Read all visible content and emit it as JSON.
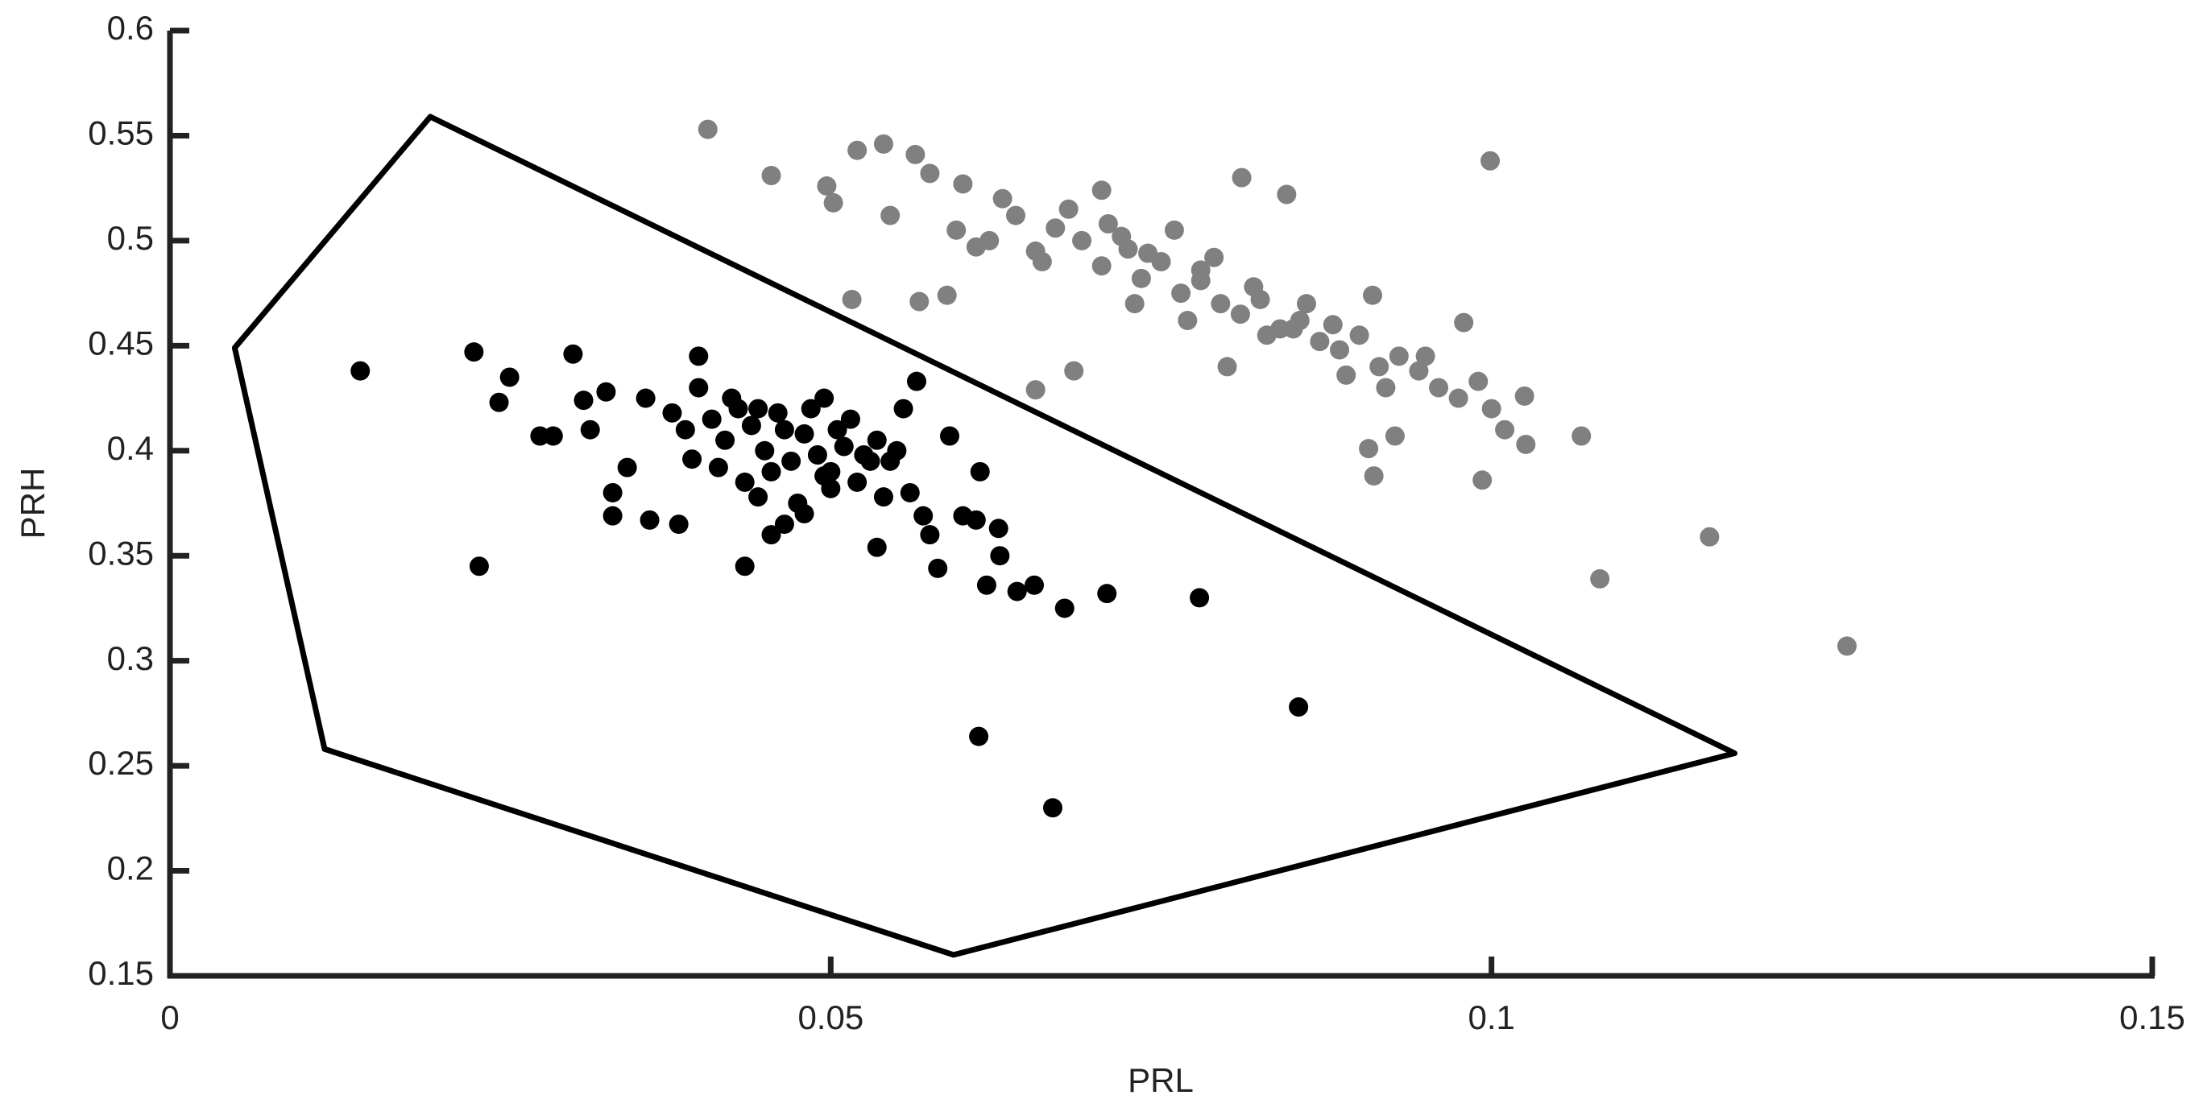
{
  "chart_data": {
    "type": "scatter",
    "xlabel": "PRL",
    "ylabel": "PRH",
    "xlim": [
      0,
      0.15
    ],
    "ylim": [
      0.15,
      0.6
    ],
    "xticks": [
      0,
      0.05,
      0.1,
      0.15
    ],
    "yticks": [
      0.15,
      0.2,
      0.25,
      0.3,
      0.35,
      0.4,
      0.45,
      0.5,
      0.55,
      0.6
    ],
    "grid": false,
    "polygon": {
      "color": "#000000",
      "x": [
        0.0197,
        0.0049,
        0.0117,
        0.0593,
        0.1184
      ],
      "y": [
        0.559,
        0.449,
        0.258,
        0.16,
        0.256
      ]
    },
    "series": [
      {
        "color": "#808080",
        "x": [
          0.0407,
          0.0455,
          0.0999,
          0.0516,
          0.0567,
          0.0588,
          0.0655,
          0.0684,
          0.1269,
          0.1165,
          0.1082,
          0.1068,
          0.1025,
          0.1026,
          0.0993,
          0.0911,
          0.0907,
          0.0927,
          0.0979,
          0.0811,
          0.0845,
          0.052,
          0.054,
          0.0564,
          0.0497,
          0.0502,
          0.0545,
          0.0575,
          0.06,
          0.062,
          0.064,
          0.0655,
          0.067,
          0.069,
          0.0705,
          0.072,
          0.0735,
          0.075,
          0.0765,
          0.078,
          0.0795,
          0.081,
          0.0825,
          0.084,
          0.0855,
          0.087,
          0.0885,
          0.09,
          0.0915,
          0.093,
          0.0945,
          0.096,
          0.0975,
          0.1,
          0.063,
          0.066,
          0.068,
          0.071,
          0.073,
          0.074,
          0.076,
          0.077,
          0.079,
          0.08,
          0.082,
          0.083,
          0.086,
          0.088,
          0.089,
          0.092,
          0.095,
          0.099,
          0.101,
          0.061,
          0.0595,
          0.0705,
          0.0725,
          0.078,
          0.085,
          0.091
        ],
        "y": [
          0.553,
          0.531,
          0.538,
          0.472,
          0.471,
          0.474,
          0.429,
          0.438,
          0.307,
          0.359,
          0.339,
          0.407,
          0.426,
          0.403,
          0.386,
          0.388,
          0.401,
          0.407,
          0.461,
          0.53,
          0.522,
          0.543,
          0.546,
          0.541,
          0.526,
          0.518,
          0.512,
          0.532,
          0.527,
          0.5,
          0.512,
          0.495,
          0.506,
          0.5,
          0.488,
          0.502,
          0.482,
          0.49,
          0.475,
          0.481,
          0.47,
          0.465,
          0.472,
          0.458,
          0.462,
          0.452,
          0.448,
          0.455,
          0.44,
          0.445,
          0.438,
          0.43,
          0.425,
          0.42,
          0.52,
          0.49,
          0.515,
          0.508,
          0.47,
          0.494,
          0.505,
          0.462,
          0.492,
          0.44,
          0.478,
          0.455,
          0.47,
          0.46,
          0.436,
          0.43,
          0.445,
          0.433,
          0.41,
          0.497,
          0.505,
          0.524,
          0.496,
          0.486,
          0.458,
          0.474
        ]
      },
      {
        "color": "#000000",
        "x": [
          0.0144,
          0.023,
          0.0234,
          0.0257,
          0.0249,
          0.0305,
          0.04,
          0.0612,
          0.0668,
          0.0854,
          0.0779,
          0.0709,
          0.0677,
          0.0654,
          0.0641,
          0.0618,
          0.0628,
          0.0627,
          0.0581,
          0.0535,
          0.0435,
          0.0335,
          0.0335,
          0.0346,
          0.0363,
          0.0385,
          0.028,
          0.029,
          0.0318,
          0.0313,
          0.0613,
          0.059,
          0.06,
          0.061,
          0.0575,
          0.057,
          0.036,
          0.038,
          0.039,
          0.04,
          0.041,
          0.042,
          0.043,
          0.044,
          0.045,
          0.046,
          0.047,
          0.048,
          0.049,
          0.05,
          0.051,
          0.052,
          0.053,
          0.054,
          0.055,
          0.056,
          0.0395,
          0.0415,
          0.0435,
          0.0455,
          0.0475,
          0.0495,
          0.0515,
          0.0535,
          0.0425,
          0.0445,
          0.0465,
          0.0485,
          0.0505,
          0.0525,
          0.0545,
          0.0445,
          0.0465,
          0.048,
          0.0495,
          0.0455,
          0.05,
          0.0555,
          0.0565,
          0.033
        ],
        "y": [
          0.438,
          0.447,
          0.345,
          0.435,
          0.423,
          0.446,
          0.445,
          0.264,
          0.23,
          0.278,
          0.33,
          0.332,
          0.325,
          0.336,
          0.333,
          0.336,
          0.35,
          0.363,
          0.344,
          0.354,
          0.345,
          0.369,
          0.38,
          0.392,
          0.367,
          0.365,
          0.407,
          0.407,
          0.41,
          0.424,
          0.39,
          0.407,
          0.369,
          0.367,
          0.36,
          0.369,
          0.425,
          0.418,
          0.41,
          0.43,
          0.415,
          0.405,
          0.42,
          0.412,
          0.4,
          0.418,
          0.395,
          0.408,
          0.398,
          0.39,
          0.402,
          0.385,
          0.395,
          0.378,
          0.4,
          0.38,
          0.396,
          0.392,
          0.385,
          0.39,
          0.375,
          0.388,
          0.415,
          0.405,
          0.425,
          0.42,
          0.41,
          0.42,
          0.41,
          0.398,
          0.395,
          0.378,
          0.365,
          0.37,
          0.425,
          0.36,
          0.382,
          0.42,
          0.433,
          0.428
        ]
      }
    ]
  }
}
